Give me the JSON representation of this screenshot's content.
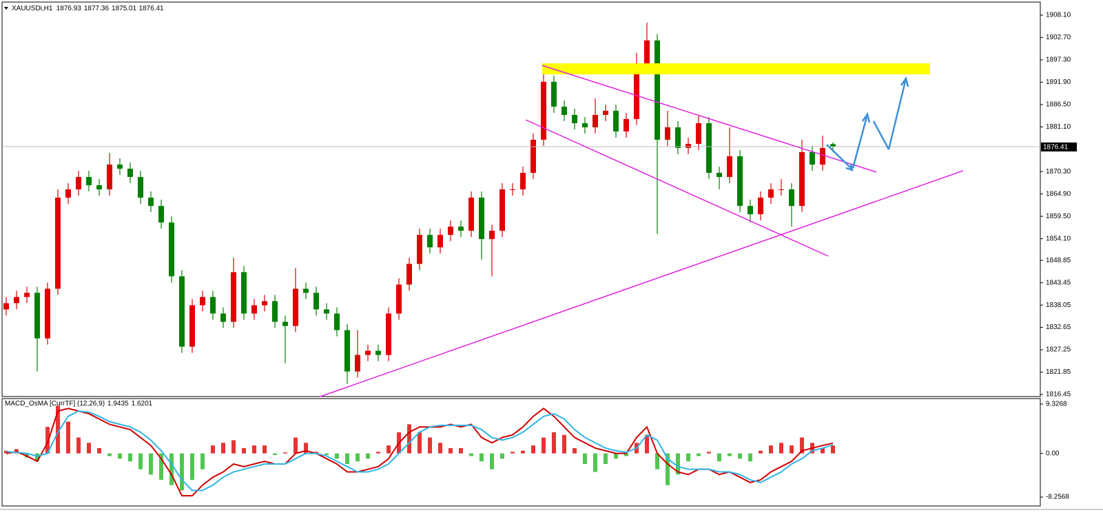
{
  "chart_data": [
    {
      "type": "candlestick",
      "symbol": "XAUUSDi,H1",
      "open": [
        1837,
        1838.5,
        1840,
        1841,
        1830,
        1842,
        1864,
        1866,
        1869,
        1867,
        1866,
        1872,
        1871,
        1869,
        1864,
        1862,
        1858,
        1845,
        1828,
        1838,
        1840,
        1836,
        1834,
        1846,
        1836,
        1838,
        1839,
        1834,
        1833,
        1842,
        1841,
        1837,
        1836,
        1832,
        1822,
        1826,
        1827,
        1826,
        1836,
        1843,
        1848,
        1855,
        1852,
        1855,
        1857,
        1856,
        1864,
        1854,
        1856,
        1866,
        1866,
        1870,
        1878,
        1892,
        1886,
        1884,
        1882,
        1881,
        1884,
        1885,
        1880,
        1883,
        1896,
        1902,
        1878,
        1881,
        1876,
        1877,
        1882,
        1870,
        1869,
        1874,
        1862,
        1860,
        1864,
        1866,
        1866,
        1862,
        1875,
        1872,
        1876.93
      ],
      "high": [
        1840,
        1841.5,
        1842.5,
        1842.5,
        1843.5,
        1866,
        1867.5,
        1870.5,
        1870.5,
        1868.5,
        1874.8,
        1873.5,
        1872.5,
        1870.5,
        1865.5,
        1863.5,
        1859.5,
        1846.5,
        1839.5,
        1841.5,
        1841.5,
        1837.5,
        1849.5,
        1847.5,
        1839.5,
        1840.5,
        1840.5,
        1835.5,
        1847,
        1843.5,
        1842.5,
        1838.5,
        1837.5,
        1833.5,
        1832,
        1828.5,
        1828.5,
        1837.5,
        1844.5,
        1849.5,
        1856.5,
        1856.5,
        1856.5,
        1858.5,
        1858.5,
        1865.5,
        1865.5,
        1857.5,
        1867.5,
        1867.5,
        1871.5,
        1879.5,
        1896,
        1893.5,
        1887.5,
        1885.5,
        1883.5,
        1888,
        1886.5,
        1886.5,
        1884.5,
        1899,
        1906.3,
        1903.5,
        1885,
        1882.5,
        1878.5,
        1884,
        1883.5,
        1871.5,
        1881,
        1875.5,
        1863.5,
        1865.5,
        1867.5,
        1868.5,
        1867.5,
        1878,
        1876.5,
        1879,
        1877.36
      ],
      "low": [
        1835.5,
        1837,
        1838.5,
        1822,
        1828.5,
        1840.5,
        1862.5,
        1864.5,
        1865.5,
        1864.5,
        1864.5,
        1869.5,
        1867.5,
        1862.5,
        1860.5,
        1856.5,
        1843.5,
        1826.5,
        1826.5,
        1836.5,
        1834.5,
        1832.5,
        1832.5,
        1834.5,
        1834.5,
        1836.5,
        1832.5,
        1824,
        1831.5,
        1839.5,
        1835.5,
        1834.5,
        1830.5,
        1819,
        1820.5,
        1824.5,
        1824.5,
        1824.5,
        1834.5,
        1841.5,
        1846.5,
        1850.5,
        1850.5,
        1853.5,
        1854.5,
        1854.5,
        1849,
        1845,
        1854.5,
        1864.5,
        1864.5,
        1868.5,
        1876.5,
        1884.5,
        1882.5,
        1880.5,
        1879.5,
        1879.5,
        1882.5,
        1878.5,
        1878.5,
        1881.5,
        1894.5,
        1855.2,
        1876.5,
        1874.5,
        1874.5,
        1875.5,
        1868.5,
        1866,
        1867.5,
        1860.5,
        1858,
        1858.5,
        1862.5,
        1864.5,
        1857,
        1860.5,
        1870.5,
        1870.5,
        1875.01
      ],
      "close": [
        1838.5,
        1840,
        1841,
        1830,
        1842,
        1864,
        1866,
        1869,
        1867,
        1866,
        1872,
        1871,
        1869,
        1864,
        1862,
        1858,
        1845,
        1828,
        1838,
        1840,
        1836,
        1834,
        1846,
        1836,
        1838,
        1839,
        1834,
        1833,
        1842,
        1841,
        1837,
        1836,
        1832,
        1822,
        1826,
        1827,
        1826,
        1836,
        1843,
        1848,
        1855,
        1852,
        1855,
        1857,
        1856,
        1864,
        1854,
        1856,
        1866,
        1866,
        1870,
        1878,
        1892,
        1886,
        1884,
        1882,
        1881,
        1884,
        1885,
        1880,
        1883,
        1896,
        1902,
        1878,
        1881,
        1876,
        1877,
        1882,
        1870,
        1869,
        1874,
        1862,
        1860,
        1864,
        1866,
        1866,
        1862,
        1875,
        1872,
        1876,
        1876.41
      ],
      "bull_color": "#e00000",
      "bear_color": "#008000",
      "ylim": [
        1815.95,
        1910.93
      ],
      "yticks": [
        {
          "value": 1908.1,
          "label": "1908.10"
        },
        {
          "value": 1902.7,
          "label": "1902.70"
        },
        {
          "value": 1897.3,
          "label": "1897.30"
        },
        {
          "value": 1891.9,
          "label": "1891.90"
        },
        {
          "value": 1886.5,
          "label": "1886.50"
        },
        {
          "value": 1881.1,
          "label": "1881.10"
        },
        {
          "value": 1870.3,
          "label": "1870.30"
        },
        {
          "value": 1864.9,
          "label": "1864.90"
        },
        {
          "value": 1859.5,
          "label": "1859.50"
        },
        {
          "value": 1854.1,
          "label": "1854.10"
        },
        1848.85,
        1843.45,
        1838.05,
        1832.65,
        1827.25,
        1821.85,
        1816.45
      ]
    },
    {
      "type": "macd",
      "title": "MACD_OsMA [CurrTF] (12,26,9)",
      "histogram": [
        0.5,
        0.8,
        -0.8,
        -1.5,
        5,
        9,
        6,
        3,
        2,
        1,
        -0.5,
        -1,
        -1.5,
        -3,
        -4,
        -5,
        -6,
        -7,
        -5,
        -3,
        1.5,
        2,
        2.5,
        1,
        1.5,
        1.5,
        -0.3,
        0.2,
        3,
        2,
        0.3,
        -0.3,
        -1,
        -2,
        -1.5,
        -1,
        0.3,
        1.5,
        4,
        5.5,
        4,
        3,
        2,
        1,
        1,
        -0.5,
        -1.5,
        -3,
        -1,
        0.3,
        0.5,
        1.5,
        3,
        4,
        3.5,
        1,
        -2,
        -3.5,
        -2,
        -1,
        -0.5,
        2,
        3.5,
        -3,
        -6,
        -4,
        -1.5,
        -0.5,
        0.3,
        -1.5,
        -0.5,
        -1,
        -1.5,
        0.5,
        1.5,
        2,
        1.5,
        3,
        2,
        1,
        1.5
      ],
      "up_color": "#e01010",
      "down_color": "#33bb33",
      "series": [
        {
          "color": "#d00000",
          "values": [
            0,
            0.3,
            -0.5,
            -1.5,
            2,
            8,
            8.5,
            8,
            7.5,
            6.5,
            5.5,
            5,
            4.5,
            3,
            1.5,
            -1,
            -4,
            -8,
            -8,
            -6,
            -4.5,
            -3.5,
            -2,
            -2.5,
            -2,
            -1.5,
            -2,
            -2,
            0,
            0.5,
            0,
            -1,
            -2,
            -3.5,
            -3.5,
            -3,
            -2.5,
            -1,
            2,
            4,
            5,
            5,
            5,
            5.5,
            5,
            5.5,
            3,
            2,
            3,
            3.5,
            5,
            7,
            8.5,
            7,
            5,
            3,
            2,
            1,
            0.5,
            0,
            0,
            3,
            5,
            0,
            -2,
            -3.5,
            -4,
            -3,
            -3,
            -4,
            -3.5,
            -4.5,
            -5.5,
            -5,
            -3.5,
            -2.5,
            -1.5,
            0.5,
            1,
            1.5,
            1.9435
          ]
        },
        {
          "color": "#2eb4e6",
          "values": [
            0.3,
            0.2,
            0,
            -0.5,
            0,
            4,
            7,
            8,
            7.8,
            7,
            6,
            5.5,
            5,
            4,
            2.5,
            0.5,
            -2,
            -5,
            -7,
            -7,
            -6,
            -4.5,
            -3.5,
            -3,
            -2.5,
            -2,
            -2,
            -2,
            -1,
            0,
            0,
            -0.5,
            -1.5,
            -2.5,
            -3.5,
            -3.5,
            -3,
            -2,
            0,
            2,
            4,
            5,
            5.3,
            5.3,
            5.3,
            5.3,
            4.5,
            3,
            2.5,
            3,
            4,
            5.5,
            7,
            7.5,
            6.5,
            4.5,
            3,
            2,
            1,
            0.5,
            0.2,
            1,
            3.5,
            2.5,
            -1,
            -2.5,
            -3,
            -3,
            -3,
            -3.5,
            -3.5,
            -4,
            -5,
            -5.5,
            -4.5,
            -3.5,
            -2,
            -1,
            0.5,
            1,
            1.6201
          ]
        }
      ],
      "ylim": [
        -9.94,
        10.36
      ],
      "yticks": [
        9.3268,
        {
          "value": 0,
          "label": "0.00"
        },
        -8.2568
      ]
    }
  ]
}
